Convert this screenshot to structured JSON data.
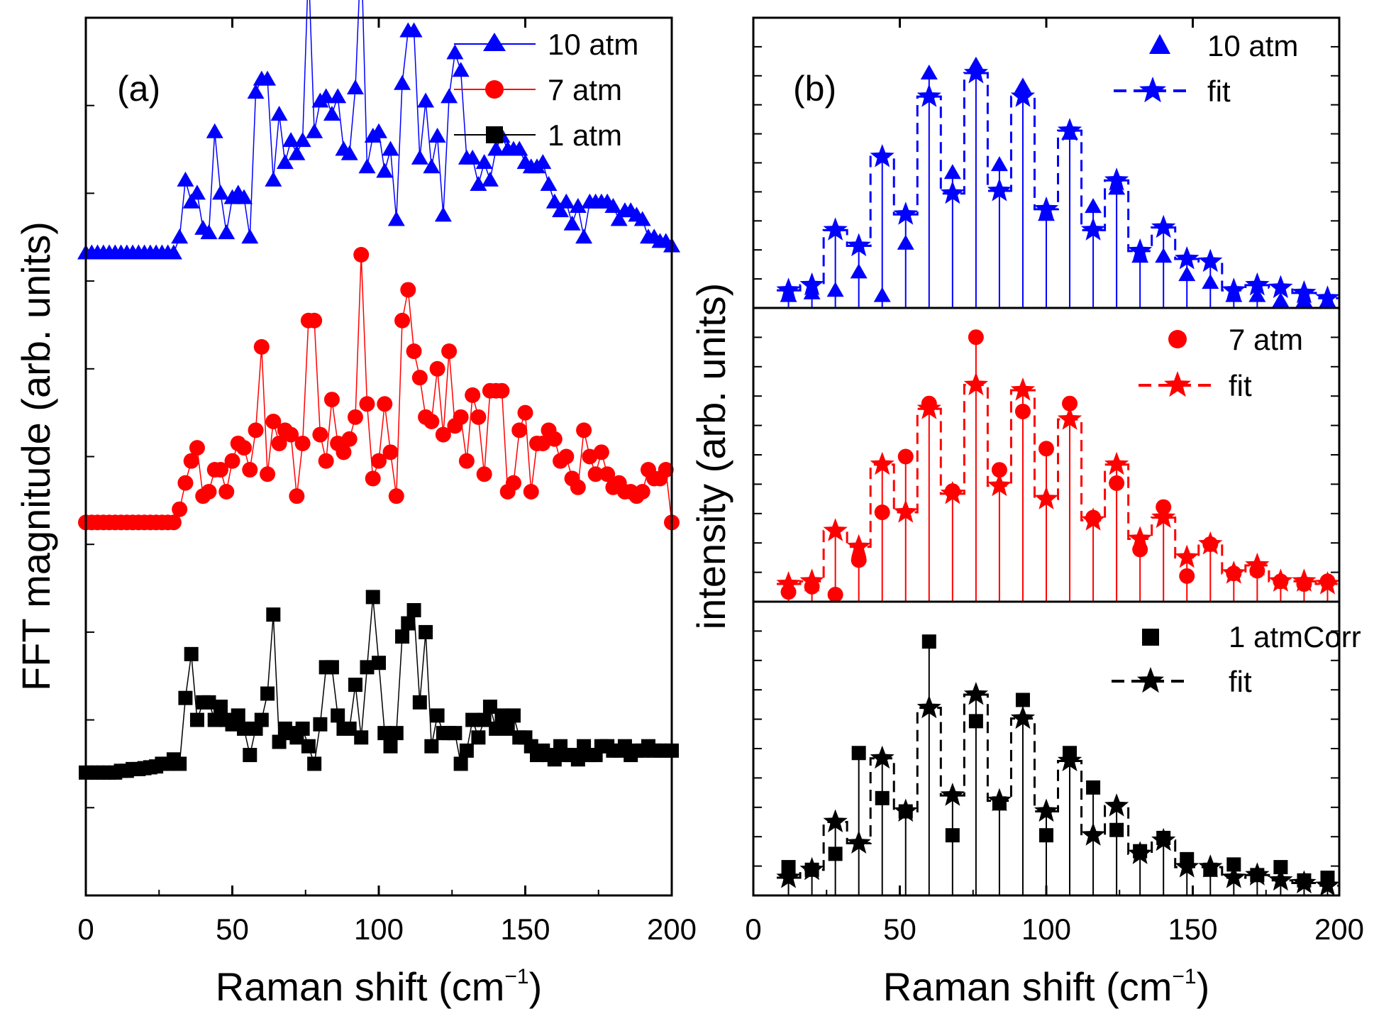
{
  "chart_data": [
    {
      "panel": "(a)",
      "type": "line",
      "title": "",
      "xlabel": "Raman shift (cm",
      "xlabel_sup": "−1",
      "xlabel_close": ")",
      "ylabel": "FFT magnitude (arb. units)",
      "xlim": [
        0,
        200
      ],
      "xticks": [
        "0",
        "50",
        "100",
        "150",
        "200"
      ],
      "ylim": [
        0,
        10
      ],
      "yticks_labeled": false,
      "legend": "top-right",
      "series": [
        {
          "name": "10 atm",
          "color": "#0000ff",
          "marker": "triangle",
          "x": [
            0,
            2,
            4,
            6,
            8,
            10,
            12,
            14,
            16,
            18,
            20,
            22,
            24,
            26,
            28,
            30,
            32,
            34,
            36,
            38,
            40,
            42,
            44,
            46,
            48,
            50,
            52,
            54,
            56,
            58,
            60,
            62,
            64,
            66,
            68,
            70,
            72,
            74,
            76,
            78,
            80,
            82,
            84,
            86,
            88,
            90,
            92,
            94,
            96,
            98,
            100,
            102,
            104,
            106,
            108,
            110,
            112,
            114,
            116,
            118,
            120,
            122,
            124,
            126,
            128,
            130,
            132,
            134,
            136,
            138,
            140,
            142,
            144,
            146,
            148,
            150,
            152,
            154,
            156,
            158,
            160,
            162,
            164,
            166,
            168,
            170,
            172,
            174,
            176,
            178,
            180,
            182,
            184,
            186,
            188,
            190,
            192,
            194,
            196,
            198,
            200
          ],
          "values": [
            7.32,
            7.32,
            7.32,
            7.32,
            7.32,
            7.32,
            7.32,
            7.32,
            7.32,
            7.32,
            7.32,
            7.32,
            7.32,
            7.32,
            7.32,
            7.32,
            7.5,
            8.15,
            7.9,
            8.0,
            7.6,
            7.55,
            8.7,
            8.0,
            7.55,
            7.95,
            8.0,
            7.95,
            7.5,
            9.15,
            9.3,
            9.3,
            8.15,
            8.9,
            8.35,
            8.6,
            8.45,
            8.6,
            10.6,
            8.7,
            9.05,
            9.1,
            8.9,
            9.1,
            8.5,
            8.45,
            9.2,
            10.8,
            8.3,
            8.65,
            8.7,
            8.25,
            8.5,
            7.7,
            9.25,
            9.85,
            9.85,
            8.4,
            9.05,
            8.3,
            8.65,
            7.75,
            9.1,
            9.6,
            9.4,
            8.4,
            8.4,
            8.1,
            8.35,
            8.15,
            8.5,
            8.65,
            8.5,
            8.5,
            8.5,
            8.35,
            8.3,
            8.3,
            8.35,
            8.1,
            7.9,
            7.8,
            7.9,
            7.65,
            7.85,
            7.5,
            7.9,
            7.9,
            7.9,
            7.9,
            7.85,
            7.7,
            7.8,
            7.8,
            7.75,
            7.7,
            7.5,
            7.5,
            7.45,
            7.45,
            7.4
          ]
        },
        {
          "name": "7 atm",
          "color": "#ff0000",
          "marker": "circle",
          "x": [
            0,
            2,
            4,
            6,
            8,
            10,
            12,
            14,
            16,
            18,
            20,
            22,
            24,
            26,
            28,
            30,
            32,
            34,
            36,
            38,
            40,
            42,
            44,
            46,
            48,
            50,
            52,
            54,
            56,
            58,
            60,
            62,
            64,
            66,
            68,
            70,
            72,
            74,
            76,
            78,
            80,
            82,
            84,
            86,
            88,
            90,
            92,
            94,
            96,
            98,
            100,
            102,
            104,
            106,
            108,
            110,
            112,
            114,
            116,
            118,
            120,
            122,
            124,
            126,
            128,
            130,
            132,
            134,
            136,
            138,
            140,
            142,
            144,
            146,
            148,
            150,
            152,
            154,
            156,
            158,
            160,
            162,
            164,
            166,
            168,
            170,
            172,
            174,
            176,
            178,
            180,
            182,
            184,
            186,
            188,
            190,
            192,
            194,
            196,
            198,
            200
          ],
          "values": [
            4.25,
            4.25,
            4.25,
            4.25,
            4.25,
            4.25,
            4.25,
            4.25,
            4.25,
            4.25,
            4.25,
            4.25,
            4.25,
            4.25,
            4.25,
            4.25,
            4.4,
            4.7,
            4.95,
            5.1,
            4.55,
            4.6,
            4.85,
            4.85,
            4.6,
            4.95,
            5.15,
            5.1,
            4.85,
            5.3,
            6.25,
            4.8,
            5.4,
            5.15,
            5.3,
            5.25,
            4.55,
            5.15,
            6.55,
            6.55,
            5.25,
            4.95,
            5.65,
            5.15,
            5.05,
            5.2,
            5.45,
            7.3,
            5.6,
            4.75,
            4.95,
            5.6,
            5.05,
            4.55,
            6.55,
            6.9,
            6.2,
            5.9,
            5.45,
            5.4,
            6.0,
            5.25,
            6.2,
            5.35,
            5.45,
            4.95,
            5.7,
            5.45,
            4.8,
            5.75,
            5.75,
            5.75,
            4.6,
            4.7,
            5.3,
            5.5,
            4.6,
            5.15,
            5.15,
            5.3,
            5.2,
            4.95,
            5.0,
            4.75,
            4.65,
            5.3,
            5.0,
            4.8,
            5.05,
            4.8,
            4.65,
            4.7,
            4.6,
            4.6,
            4.55,
            4.6,
            4.85,
            4.75,
            4.75,
            4.85,
            4.25
          ]
        },
        {
          "name": "1 atm",
          "color": "#000000",
          "marker": "square",
          "x": [
            0,
            2,
            4,
            6,
            8,
            10,
            12,
            14,
            16,
            18,
            20,
            22,
            24,
            26,
            28,
            30,
            32,
            34,
            36,
            38,
            40,
            42,
            44,
            46,
            48,
            50,
            52,
            54,
            56,
            58,
            60,
            62,
            64,
            66,
            68,
            70,
            72,
            74,
            76,
            78,
            80,
            82,
            84,
            86,
            88,
            90,
            92,
            94,
            96,
            98,
            100,
            102,
            104,
            106,
            108,
            110,
            112,
            114,
            116,
            118,
            120,
            122,
            124,
            126,
            128,
            130,
            132,
            134,
            136,
            138,
            140,
            142,
            144,
            146,
            148,
            150,
            152,
            154,
            156,
            158,
            160,
            162,
            164,
            166,
            168,
            170,
            172,
            174,
            176,
            178,
            180,
            182,
            184,
            186,
            188,
            190,
            192,
            194,
            196,
            198,
            200
          ],
          "values": [
            1.4,
            1.4,
            1.4,
            1.4,
            1.4,
            1.4,
            1.42,
            1.42,
            1.44,
            1.44,
            1.45,
            1.46,
            1.47,
            1.5,
            1.5,
            1.55,
            1.5,
            2.25,
            2.75,
            2.0,
            2.2,
            2.2,
            2.0,
            2.15,
            2.0,
            1.95,
            2.05,
            1.9,
            1.6,
            1.9,
            2.0,
            2.3,
            3.2,
            1.75,
            1.9,
            1.85,
            1.8,
            1.9,
            1.7,
            1.5,
            1.95,
            2.6,
            2.6,
            2.05,
            1.9,
            1.9,
            2.4,
            1.8,
            2.6,
            3.4,
            2.65,
            1.85,
            1.7,
            1.85,
            2.95,
            3.1,
            3.25,
            2.2,
            3.0,
            1.7,
            2.05,
            1.85,
            1.85,
            1.85,
            1.5,
            1.65,
            2.0,
            1.8,
            2.0,
            2.15,
            1.9,
            2.05,
            1.9,
            2.05,
            1.8,
            1.8,
            1.7,
            1.6,
            1.65,
            1.6,
            1.55,
            1.7,
            1.6,
            1.6,
            1.55,
            1.7,
            1.6,
            1.6,
            1.7,
            1.7,
            1.65,
            1.65,
            1.7,
            1.6,
            1.65,
            1.65,
            1.7,
            1.65,
            1.65,
            1.65,
            1.65
          ]
        }
      ]
    },
    {
      "panel": "(b)",
      "type": "scatter",
      "title": "",
      "xlabel": "Raman shift (cm",
      "xlabel_sup": "−1",
      "xlabel_close": ")",
      "ylabel": "intensity (arb. units)",
      "xlim": [
        0,
        200
      ],
      "xticks": [
        "0",
        "50",
        "100",
        "150",
        "200"
      ],
      "legend": "top-right",
      "subpanels": [
        {
          "ylim": [
            0,
            1
          ],
          "color": "#0000ff",
          "marker": "triangle",
          "data_name": "10 atm",
          "fit_name": "fit",
          "x": [
            12,
            20,
            28,
            36,
            44,
            52,
            60,
            68,
            76,
            84,
            92,
            100,
            108,
            116,
            124,
            132,
            140,
            148,
            156,
            164,
            172,
            180,
            188,
            196
          ],
          "data": [
            0.02,
            0.03,
            0.04,
            0.11,
            0.02,
            0.22,
            0.87,
            0.49,
            0.9,
            0.52,
            0.82,
            0.33,
            0.64,
            0.36,
            0.43,
            0.17,
            0.17,
            0.1,
            0.07,
            0.02,
            0.02,
            0.0,
            0.0,
            0.0
          ],
          "fit": [
            0.04,
            0.06,
            0.27,
            0.21,
            0.55,
            0.33,
            0.78,
            0.41,
            0.87,
            0.42,
            0.78,
            0.35,
            0.65,
            0.27,
            0.46,
            0.19,
            0.28,
            0.16,
            0.15,
            0.04,
            0.06,
            0.05,
            0.03,
            0.01
          ]
        },
        {
          "ylim": [
            0,
            1
          ],
          "color": "#ff0000",
          "marker": "circle",
          "data_name": "7 atm",
          "fit_name": "fit",
          "x": [
            12,
            20,
            28,
            36,
            44,
            52,
            60,
            68,
            76,
            84,
            92,
            100,
            108,
            116,
            124,
            132,
            140,
            148,
            156,
            164,
            172,
            180,
            188,
            196
          ],
          "data": [
            0.01,
            0.03,
            0.0,
            0.13,
            0.31,
            0.52,
            0.72,
            0.39,
            0.97,
            0.47,
            0.69,
            0.55,
            0.72,
            0.29,
            0.42,
            0.17,
            0.33,
            0.07,
            0.19,
            0.08,
            0.09,
            0.05,
            0.04,
            0.05
          ],
          "fit": [
            0.04,
            0.05,
            0.24,
            0.18,
            0.49,
            0.31,
            0.7,
            0.38,
            0.79,
            0.41,
            0.77,
            0.36,
            0.66,
            0.28,
            0.49,
            0.21,
            0.29,
            0.14,
            0.19,
            0.08,
            0.11,
            0.05,
            0.05,
            0.04
          ]
        },
        {
          "ylim": [
            0,
            1
          ],
          "color": "#000000",
          "marker": "square",
          "data_name": "1 atmCorr",
          "fit_name": "fit",
          "x": [
            12,
            20,
            28,
            36,
            44,
            52,
            60,
            68,
            76,
            84,
            92,
            100,
            108,
            116,
            124,
            132,
            140,
            148,
            156,
            164,
            172,
            180,
            188,
            196
          ],
          "data": [
            0.08,
            0.07,
            0.13,
            0.51,
            0.34,
            0.29,
            0.93,
            0.2,
            0.63,
            0.32,
            0.71,
            0.2,
            0.51,
            0.38,
            0.22,
            0.14,
            0.19,
            0.11,
            0.07,
            0.09,
            0.05,
            0.08,
            0.03,
            0.04
          ],
          "fit": [
            0.04,
            0.07,
            0.25,
            0.17,
            0.49,
            0.29,
            0.68,
            0.35,
            0.73,
            0.33,
            0.64,
            0.29,
            0.48,
            0.2,
            0.31,
            0.13,
            0.18,
            0.08,
            0.08,
            0.04,
            0.05,
            0.03,
            0.02,
            0.01
          ]
        }
      ]
    }
  ]
}
